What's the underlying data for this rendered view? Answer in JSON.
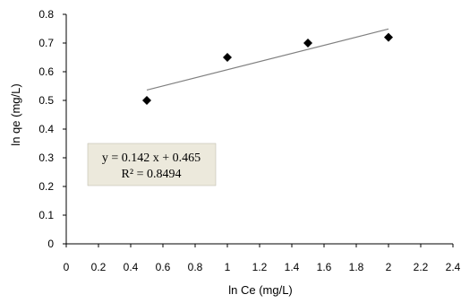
{
  "chart_data": {
    "type": "scatter",
    "xlabel": "ln Ce  (mg/L)",
    "ylabel": "ln qe  (mg/L)",
    "xlim": [
      0,
      2.4
    ],
    "ylim": [
      0,
      0.8
    ],
    "x_ticks": [
      "0",
      "0.2",
      "0.4",
      "0.6",
      "0.8",
      "1",
      "1.2",
      "1.4",
      "1.6",
      "1.8",
      "2",
      "2.2",
      "2.4"
    ],
    "y_ticks": [
      "0",
      "0.1",
      "0.2",
      "0.3",
      "0.4",
      "0.5",
      "0.6",
      "0.7",
      "0.8"
    ],
    "points": [
      {
        "x": 0.5,
        "y": 0.5
      },
      {
        "x": 1.0,
        "y": 0.65
      },
      {
        "x": 1.5,
        "y": 0.7
      },
      {
        "x": 2.0,
        "y": 0.72
      }
    ],
    "trendline": {
      "slope": 0.142,
      "intercept": 0.465,
      "x_range": [
        0.5,
        2.0
      ]
    },
    "equation_text": "y = 0.142 x + 0.465",
    "r2_text": "R² = 0.8494",
    "grid": false,
    "colors": {
      "marker": "#000000",
      "trendline": "#808080",
      "equation_box": "#ece9dc"
    }
  }
}
